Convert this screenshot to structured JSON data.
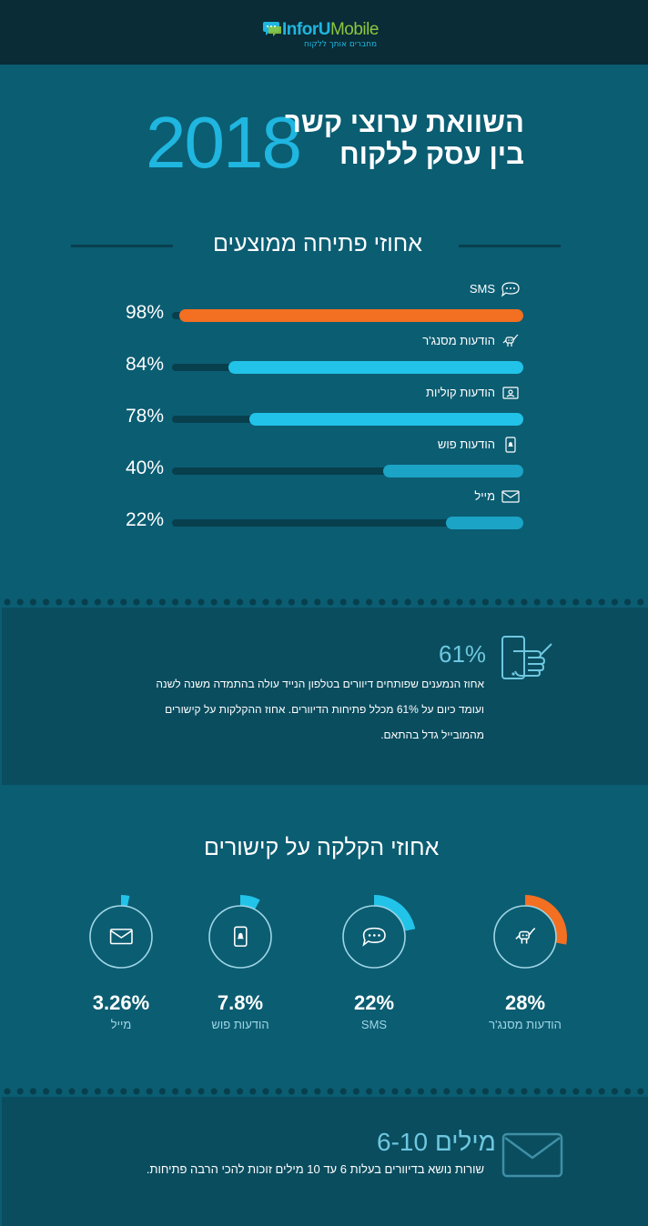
{
  "header": {
    "brand_part1": "InforU",
    "brand_part2": "Mobile",
    "tagline": "מחברים אותך ללקוח"
  },
  "hero": {
    "year": "2018",
    "title_line1": "השוואת ערוצי קשר",
    "title_line2": "בין עסק ללקוח"
  },
  "open_rates": {
    "heading": "אחוזי פתיחה ממוצעים"
  },
  "mobile_panel": {
    "stat": "61%",
    "line1": "אחוז הנמענים שפותחים דיוורים בטלפון הנייד עולה בהתמדה משנה לשנה",
    "line2": "ועומד כיום על 61% מכלל פתיחות הדיוורים. אחוז ההקלקות על קישורים",
    "line3": "מהמובייל גדל בהתאם."
  },
  "click_rates": {
    "heading": "אחוזי הקלקה על קישורים"
  },
  "subject_panel": {
    "stat": "6-10 מילים",
    "text": "שורות נושא בדיוורים בעלות 6 עד 10 מילים זוכות להכי הרבה פתיחות."
  },
  "colors": {
    "accent_orange": "#f36f21",
    "accent_cyan": "#22c3e8",
    "accent_teal": "#1ba4c6",
    "background": "#0b5d72"
  },
  "chart_data": [
    {
      "type": "bar",
      "title": "אחוזי פתיחה ממוצעים",
      "categories": [
        "SMS",
        "הודעות מסנג'ר",
        "הודעות קוליות",
        "הודעות פוש",
        "מייל"
      ],
      "values": [
        98,
        84,
        78,
        40,
        22
      ],
      "value_labels": [
        "98%",
        "84%",
        "78%",
        "40%",
        "22%"
      ],
      "icons": [
        "chat-bubble-icon",
        "robot-hand-icon",
        "voice-message-icon",
        "push-notification-icon",
        "envelope-icon"
      ],
      "bar_colors": [
        "#f36f21",
        "#22c3e8",
        "#22c3e8",
        "#1ba4c6",
        "#1ba4c6"
      ],
      "ylim": [
        0,
        100
      ]
    },
    {
      "type": "pie",
      "title": "אחוזי הקלקה על קישורים",
      "categories": [
        "הודעות מסנג'ר",
        "SMS",
        "הודעות פוש",
        "מייל"
      ],
      "values": [
        28,
        22,
        7.8,
        3.26
      ],
      "value_labels": [
        "28%",
        "22%",
        "7.8%",
        "3.26%"
      ],
      "icons": [
        "robot-hand-icon",
        "chat-bubble-icon",
        "push-notification-icon",
        "envelope-icon"
      ],
      "colors": [
        "#f36f21",
        "#22c3e8",
        "#22c3e8",
        "#22c3e8"
      ]
    }
  ]
}
